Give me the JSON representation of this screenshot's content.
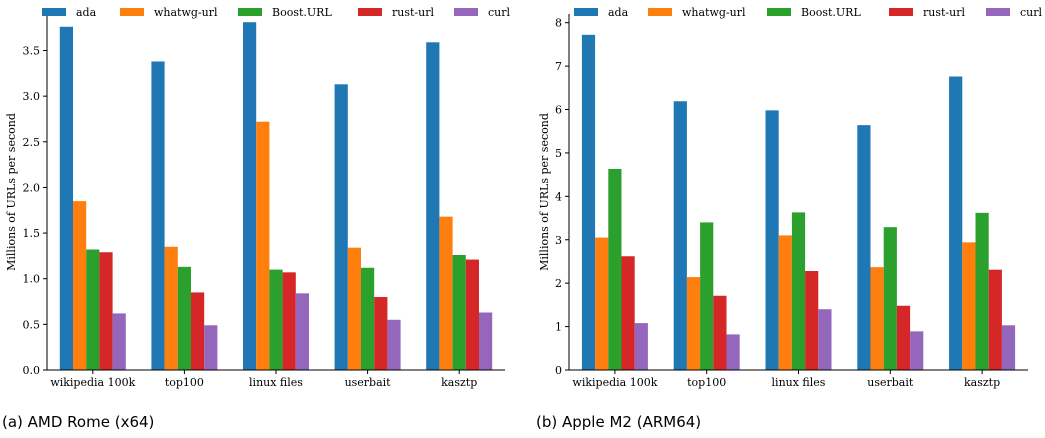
{
  "chart_data": [
    {
      "type": "bar",
      "caption": "(a) AMD Rome (x64)",
      "categories": [
        "wikipedia 100k",
        "top100",
        "linux files",
        "userbait",
        "kasztp"
      ],
      "ylabel": "Millions of URLs per second",
      "ylim": [
        0,
        3.9
      ],
      "yticks": [
        "0.0",
        "0.5",
        "1.0",
        "1.5",
        "2.0",
        "2.5",
        "3.0",
        "3.5"
      ],
      "legend_position": "top",
      "grid": false,
      "series": [
        {
          "name": "ada",
          "color": "#1f77b4",
          "values": [
            3.76,
            3.38,
            3.81,
            3.13,
            3.59
          ]
        },
        {
          "name": "whatwg-url",
          "color": "#ff7f0e",
          "values": [
            1.85,
            1.35,
            2.72,
            1.34,
            1.68
          ]
        },
        {
          "name": "Boost.URL",
          "color": "#2ca02c",
          "values": [
            1.32,
            1.13,
            1.1,
            1.12,
            1.26
          ]
        },
        {
          "name": "rust-url",
          "color": "#d62728",
          "values": [
            1.29,
            0.85,
            1.07,
            0.8,
            1.21
          ]
        },
        {
          "name": "curl",
          "color": "#9467bd",
          "values": [
            0.62,
            0.49,
            0.84,
            0.55,
            0.63
          ]
        }
      ]
    },
    {
      "type": "bar",
      "caption": "(b) Apple M2 (ARM64)",
      "categories": [
        "wikipedia 100k",
        "top100",
        "linux files",
        "userbait",
        "kasztp"
      ],
      "ylabel": "Millions of URLs per second",
      "ylim": [
        0,
        8.2
      ],
      "yticks": [
        "0",
        "1",
        "2",
        "3",
        "4",
        "5",
        "6",
        "7",
        "8"
      ],
      "legend_position": "top",
      "grid": false,
      "series": [
        {
          "name": "ada",
          "color": "#1f77b4",
          "values": [
            7.72,
            6.19,
            5.98,
            5.64,
            6.76
          ]
        },
        {
          "name": "whatwg-url",
          "color": "#ff7f0e",
          "values": [
            3.05,
            2.14,
            3.1,
            2.37,
            2.94
          ]
        },
        {
          "name": "Boost.URL",
          "color": "#2ca02c",
          "values": [
            4.63,
            3.4,
            3.63,
            3.29,
            3.62
          ]
        },
        {
          "name": "rust-url",
          "color": "#d62728",
          "values": [
            2.62,
            1.71,
            2.28,
            1.48,
            2.31
          ]
        },
        {
          "name": "curl",
          "color": "#9467bd",
          "values": [
            1.08,
            0.82,
            1.4,
            0.89,
            1.03
          ]
        }
      ]
    }
  ]
}
